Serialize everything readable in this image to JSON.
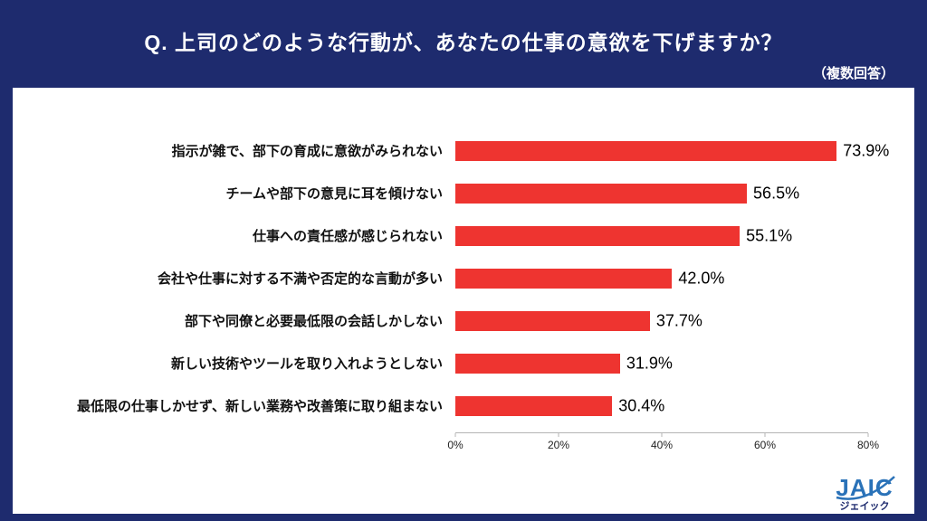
{
  "header": {
    "title": "Q. 上司のどのような行動が、あなたの仕事の意欲を下げますか？",
    "note": "（複数回答）"
  },
  "chart_data": {
    "type": "bar",
    "orientation": "horizontal",
    "title": "Q. 上司のどのような行動が、あなたの仕事の意欲を下げますか？",
    "subtitle": "（複数回答）",
    "categories": [
      "指示が雑で、部下の育成に意欲がみられない",
      "チームや部下の意見に耳を傾けない",
      "仕事への責任感が感じられない",
      "会社や仕事に対する不満や否定的な言動が多い",
      "部下や同僚と必要最低限の会話しかしない",
      "新しい技術やツールを取り入れようとしない",
      "最低限の仕事しかせず、新しい業務や改善策に取り組まない"
    ],
    "values": [
      73.9,
      56.5,
      55.1,
      42.0,
      37.7,
      31.9,
      30.4
    ],
    "value_labels": [
      "73.9%",
      "56.5%",
      "55.1%",
      "42.0%",
      "37.7%",
      "31.9%",
      "30.4%"
    ],
    "xlim": [
      0,
      80
    ],
    "x_ticks": [
      "0%",
      "20%",
      "40%",
      "60%",
      "80%"
    ],
    "x_tick_values": [
      0,
      20,
      40,
      60,
      80
    ],
    "grid": false,
    "legend": null,
    "bar_color": "#ee3430"
  },
  "logo": {
    "text": "JAIC",
    "subtext": "ジェイック"
  },
  "colors": {
    "background": "#1e2b6e",
    "panel": "#ffffff",
    "bar": "#ee3430",
    "title_text": "#ffffff",
    "logo_blue": "#2a72b8"
  }
}
